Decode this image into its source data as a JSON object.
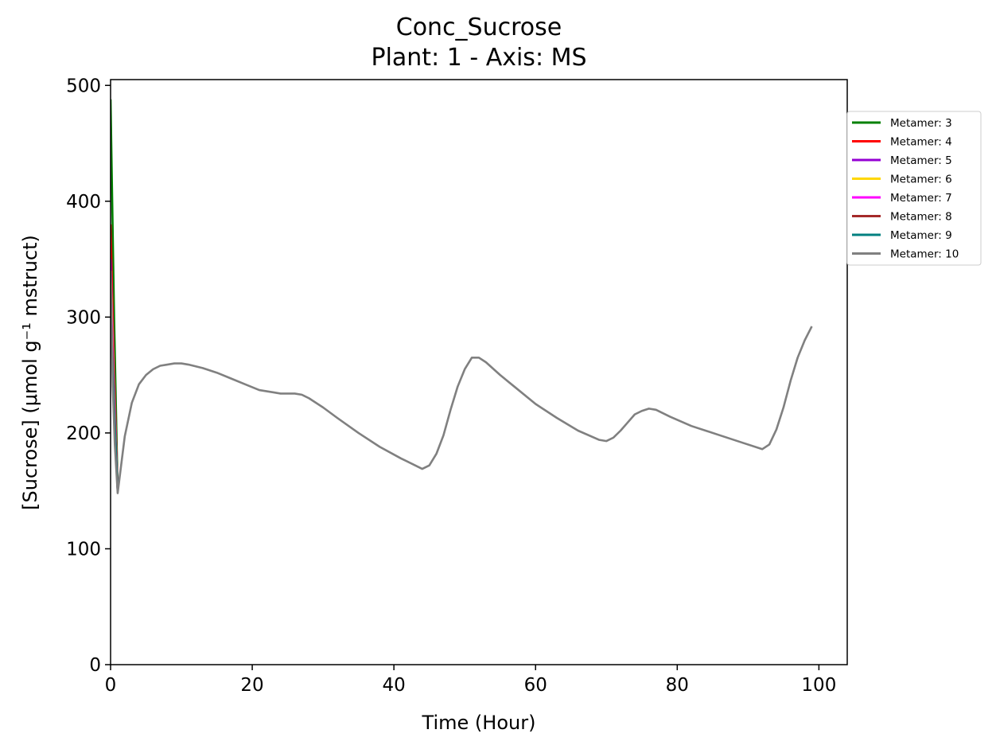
{
  "chart_data": {
    "type": "line",
    "title": "Conc_Sucrose",
    "subtitle": "Plant: 1 - Axis: MS",
    "xlabel": "Time (Hour)",
    "ylabel": "[Sucrose] (μmol g⁻¹ mstruct)",
    "xlim": [
      0,
      104
    ],
    "ylim": [
      0,
      505
    ],
    "xticks": [
      0,
      20,
      40,
      60,
      80,
      100
    ],
    "yticks": [
      0,
      100,
      200,
      300,
      400,
      500
    ],
    "grid": false,
    "legend_position": "upper right, outside plot",
    "series": [
      {
        "name": "Metamer: 3",
        "color": "#008000",
        "x": [
          0,
          0.5,
          1
        ],
        "y": [
          488,
          300,
          150
        ]
      },
      {
        "name": "Metamer: 4",
        "color": "#ff0000",
        "x": [
          0,
          0.5,
          1
        ],
        "y": [
          380,
          250,
          150
        ]
      },
      {
        "name": "Metamer: 5",
        "color": "#9400d3",
        "x": [
          0,
          0.5,
          1
        ],
        "y": [
          350,
          240,
          150
        ]
      },
      {
        "name": "Metamer: 6",
        "color": "#ffd700",
        "x": [
          0,
          0.5,
          1
        ],
        "y": [
          340,
          235,
          150
        ]
      },
      {
        "name": "Metamer: 7",
        "color": "#ff00ff",
        "x": [
          0,
          0.5,
          1
        ],
        "y": [
          330,
          230,
          150
        ]
      },
      {
        "name": "Metamer: 8",
        "color": "#a52a2a",
        "x": [
          0,
          0.5,
          1
        ],
        "y": [
          320,
          225,
          150
        ]
      },
      {
        "name": "Metamer: 9",
        "color": "#008080",
        "x": [
          0,
          0.5,
          1
        ],
        "y": [
          310,
          220,
          150
        ]
      },
      {
        "name": "Metamer: 10",
        "color": "#808080",
        "x": [
          0,
          0.3,
          0.6,
          1,
          2,
          3,
          4,
          5,
          6,
          7,
          8,
          9,
          10,
          11,
          13,
          15,
          17,
          19,
          21,
          23,
          24,
          25,
          26,
          27,
          28,
          30,
          32,
          35,
          38,
          41,
          44,
          45,
          46,
          47,
          48,
          49,
          50,
          51,
          52,
          53,
          55,
          57,
          60,
          63,
          66,
          69,
          70,
          71,
          72,
          73,
          74,
          75,
          76,
          77,
          79,
          82,
          86,
          89,
          92,
          93,
          94,
          95,
          96,
          97,
          98,
          99
        ],
        "y": [
          340,
          240,
          190,
          148,
          197,
          226,
          242,
          250,
          255,
          258,
          259,
          260,
          260,
          259,
          256,
          252,
          247,
          242,
          237,
          235,
          234,
          234,
          234,
          233,
          230,
          222,
          213,
          200,
          188,
          178,
          169,
          172,
          182,
          198,
          220,
          240,
          255,
          265,
          265,
          261,
          250,
          240,
          225,
          213,
          202,
          194,
          193,
          196,
          202,
          209,
          216,
          219,
          221,
          220,
          214,
          206,
          198,
          192,
          186,
          190,
          203,
          222,
          245,
          265,
          280,
          292
        ]
      }
    ]
  }
}
